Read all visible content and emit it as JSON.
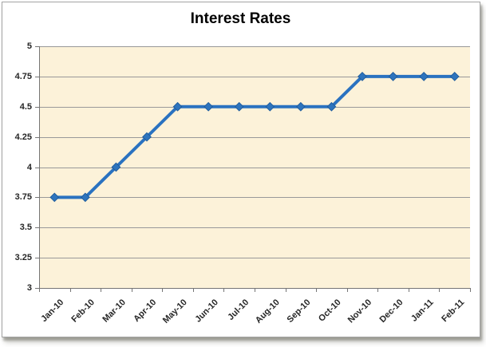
{
  "chart_data": {
    "type": "line",
    "title": "Interest Rates",
    "categories": [
      "Jan-10",
      "Feb-10",
      "Mar-10",
      "Apr-10",
      "May-10",
      "Jun-10",
      "Jul-10",
      "Aug-10",
      "Sep-10",
      "Oct-10",
      "Nov-10",
      "Dec-10",
      "Jan-11",
      "Feb-11"
    ],
    "values": [
      3.75,
      3.75,
      4,
      4.25,
      4.5,
      4.5,
      4.5,
      4.5,
      4.5,
      4.5,
      4.75,
      4.75,
      4.75,
      4.75
    ],
    "xlabel": "",
    "ylabel": "",
    "ylim": [
      3,
      5
    ],
    "ytick_step": 0.25,
    "ytick_labels": [
      "5",
      "4.75",
      "4.5",
      "4.25",
      "4",
      "3.75",
      "3.5",
      "3.25",
      "3"
    ],
    "grid": "horizontal",
    "legend": "none",
    "marker": "diamond",
    "colors": {
      "line": "#2a72c0",
      "marker_fill": "#2e74bd",
      "marker_edge": "#1f5d9e",
      "plot_bg": "#fcf2d9",
      "gridline": "#999999",
      "axis": "#757575",
      "tick": "#757575",
      "axis_label": "#262626",
      "title": "#000000",
      "frame_border": "#a3a3a3",
      "chart_bg": "#ffffff"
    }
  }
}
